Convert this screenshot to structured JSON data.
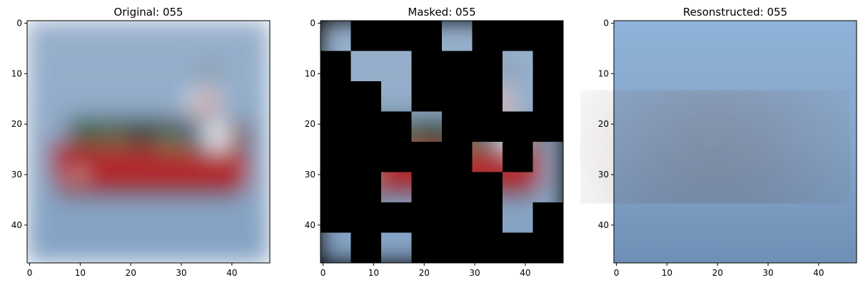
{
  "figure": {
    "background": "#ffffff"
  },
  "chart_data": [
    {
      "type": "heatmap",
      "title": "Original: 055",
      "kind": "original",
      "xlim": [
        -0.5,
        47.5
      ],
      "ylim": [
        47.5,
        -0.5
      ],
      "xticks": [
        0,
        10,
        20,
        30,
        40
      ],
      "yticks": [
        0,
        10,
        20,
        30,
        40
      ],
      "image_size": [
        48,
        48
      ]
    },
    {
      "type": "heatmap",
      "title": "Masked: 055",
      "kind": "masked",
      "xlim": [
        -0.5,
        47.5
      ],
      "ylim": [
        47.5,
        -0.5
      ],
      "xticks": [
        0,
        10,
        20,
        30,
        40
      ],
      "yticks": [
        0,
        10,
        20,
        30,
        40
      ],
      "image_size": [
        48,
        48
      ],
      "patch_size": 6,
      "visible_patches": [
        [
          0,
          0
        ],
        [
          0,
          4
        ],
        [
          1,
          1
        ],
        [
          1,
          2
        ],
        [
          1,
          6
        ],
        [
          2,
          2
        ],
        [
          2,
          6
        ],
        [
          3,
          3
        ],
        [
          4,
          5
        ],
        [
          4,
          7
        ],
        [
          5,
          2
        ],
        [
          5,
          6
        ],
        [
          5,
          7
        ],
        [
          6,
          6
        ],
        [
          7,
          0
        ],
        [
          7,
          2
        ]
      ]
    },
    {
      "type": "heatmap",
      "title": "Resonstructed: 055",
      "kind": "reconstructed",
      "xlim": [
        -0.5,
        47.5
      ],
      "ylim": [
        47.5,
        -0.5
      ],
      "xticks": [
        0,
        10,
        20,
        30,
        40
      ],
      "yticks": [
        0,
        10,
        20,
        30,
        40
      ],
      "image_size": [
        48,
        48
      ]
    }
  ]
}
